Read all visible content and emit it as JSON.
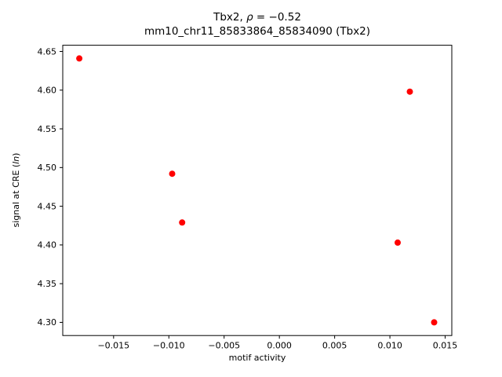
{
  "chart_data": {
    "type": "scatter",
    "title_parts": {
      "prefix": "Tbx2, ",
      "rho": "ρ",
      "suffix": " = −0.52"
    },
    "title_text": "Tbx2, ρ = −0.52",
    "subtitle": "mm10_chr11_85833864_85834090 (Tbx2)",
    "xlabel": "motif activity",
    "ylabel_parts": {
      "prefix": "signal at CRE (",
      "italic": "ln",
      "suffix": ")"
    },
    "ylabel_text": "signal at CRE (ln)",
    "xlim": [
      -0.0196,
      0.0156
    ],
    "ylim": [
      4.283,
      4.658
    ],
    "xticks": [
      -0.015,
      -0.01,
      -0.005,
      0,
      0.005,
      0.01,
      0.015
    ],
    "xtick_labels": [
      "−0.015",
      "−0.010",
      "−0.005",
      "0.000",
      "0.005",
      "0.010",
      "0.015"
    ],
    "yticks": [
      4.3,
      4.35,
      4.4,
      4.45,
      4.5,
      4.55,
      4.6,
      4.65
    ],
    "ytick_labels": [
      "4.30",
      "4.35",
      "4.40",
      "4.45",
      "4.50",
      "4.55",
      "4.60",
      "4.65"
    ],
    "marker_color": "#ff0000",
    "axis_color": "#000000",
    "grid": false,
    "points": [
      {
        "x": -0.0181,
        "y": 4.641
      },
      {
        "x": -0.0097,
        "y": 4.492
      },
      {
        "x": -0.0088,
        "y": 4.429
      },
      {
        "x": 0.0118,
        "y": 4.598
      },
      {
        "x": 0.0107,
        "y": 4.403
      },
      {
        "x": 0.014,
        "y": 4.3
      }
    ]
  }
}
